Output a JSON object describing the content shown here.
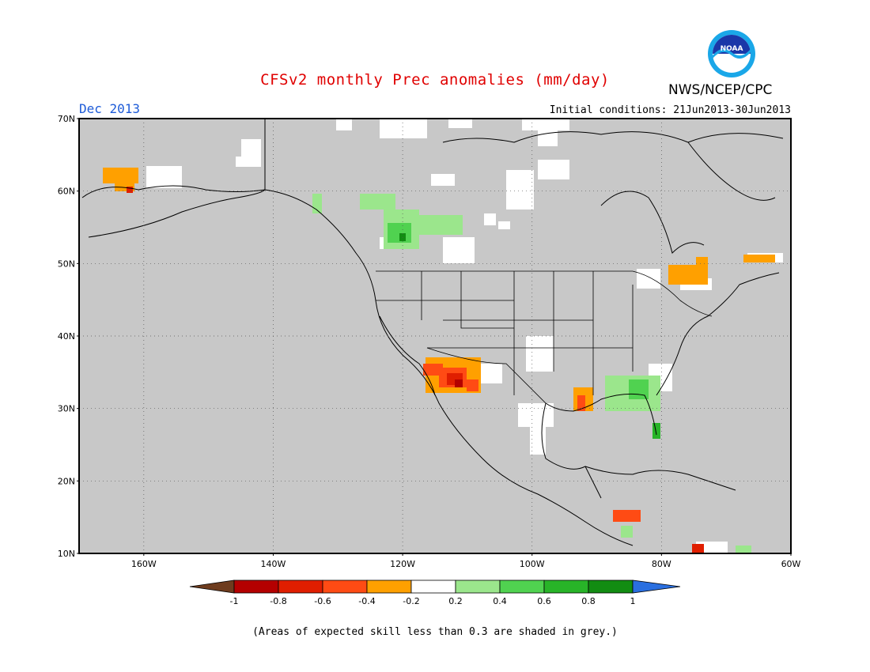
{
  "header": {
    "title": "CFSv2 monthly Prec anomalies (mm/day)",
    "month": "Dec 2013",
    "initial_conditions": "Initial conditions: 21Jun2013-30Jun2013",
    "agency": "NWS/NCEP/CPC",
    "logo_text": "NOAA"
  },
  "map": {
    "lat_labels": [
      "70N",
      "60N",
      "50N",
      "40N",
      "30N",
      "20N",
      "10N"
    ],
    "lon_labels": [
      "160W",
      "140W",
      "120W",
      "100W",
      "80W",
      "60W"
    ],
    "lat_range": [
      10,
      70
    ],
    "lon_range": [
      -170,
      -60
    ],
    "skill_mask_color": "#c8c8c8",
    "land_color_low_skill": "#c8c8c8"
  },
  "legend": {
    "tick_labels": [
      "-1",
      "-0.8",
      "-0.6",
      "-0.4",
      "-0.2",
      "0.2",
      "0.4",
      "0.6",
      "0.8",
      "1"
    ],
    "colors": [
      "#6e3c1e",
      "#b40000",
      "#e01e00",
      "#ff4b14",
      "#ffa000",
      "#ffffff",
      "#9be68c",
      "#50d250",
      "#28b428",
      "#128c12",
      "#2a6fe0"
    ]
  },
  "footnote": "(Areas of expected skill less than 0.3 are shaded in grey.)"
}
